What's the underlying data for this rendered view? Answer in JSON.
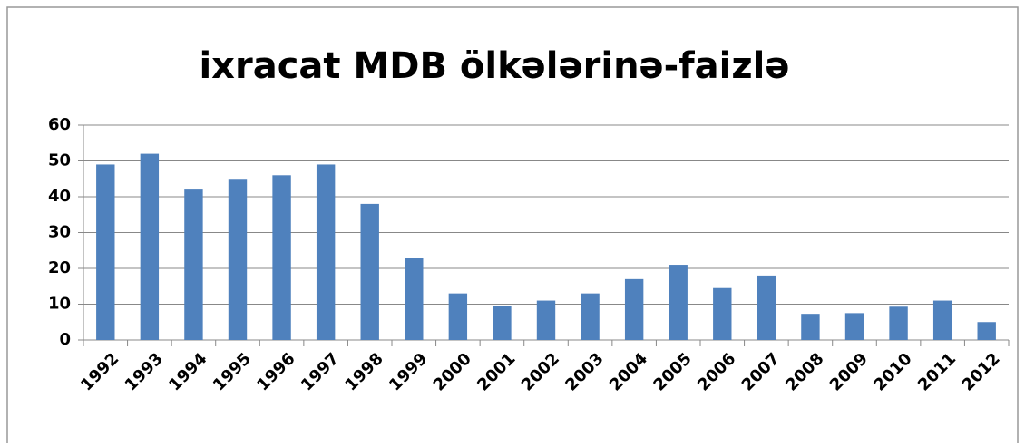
{
  "chart_data": {
    "type": "bar",
    "title": "ixracat MDB ölkələrinə-faizlə",
    "categories": [
      "1992",
      "1993",
      "1994",
      "1995",
      "1996",
      "1997",
      "1998",
      "1999",
      "2000",
      "2001",
      "2002",
      "2003",
      "2004",
      "2005",
      "2006",
      "2007",
      "2008",
      "2009",
      "2010",
      "2011",
      "2012"
    ],
    "values": [
      49,
      52,
      42,
      45,
      46,
      49,
      38,
      23,
      13,
      9.5,
      11,
      13,
      17,
      21,
      14.5,
      18,
      7.3,
      7.5,
      9.3,
      11,
      5
    ],
    "color": "#4f81bd",
    "ylim": [
      0,
      60
    ],
    "yticks": [
      0,
      10,
      20,
      30,
      40,
      50,
      60
    ],
    "grid": true
  }
}
